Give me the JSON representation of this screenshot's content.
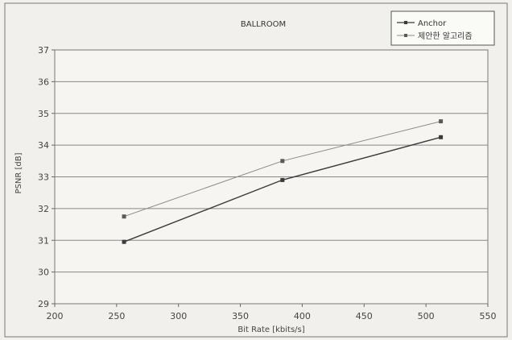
{
  "chart_data": {
    "type": "line",
    "title": "BALLROOM",
    "xlabel": "Bit Rate [kbits/s]",
    "ylabel": "PSNR [dB]",
    "xlim": [
      200,
      550
    ],
    "ylim": [
      29,
      37
    ],
    "x_ticks": [
      200,
      250,
      300,
      350,
      400,
      450,
      500,
      550
    ],
    "y_ticks": [
      29,
      30,
      31,
      32,
      33,
      34,
      35,
      36,
      37
    ],
    "grid": "horizontal",
    "legend_position": "top-right",
    "series": [
      {
        "name": "Anchor",
        "color": "#3a3a3a",
        "x": [
          256,
          384,
          512
        ],
        "y": [
          30.95,
          32.9,
          34.25
        ]
      },
      {
        "name": "제안한 알고리즘",
        "color": "#8a8a8a",
        "x": [
          256,
          384,
          512
        ],
        "y": [
          31.75,
          33.5,
          34.75
        ]
      }
    ]
  }
}
